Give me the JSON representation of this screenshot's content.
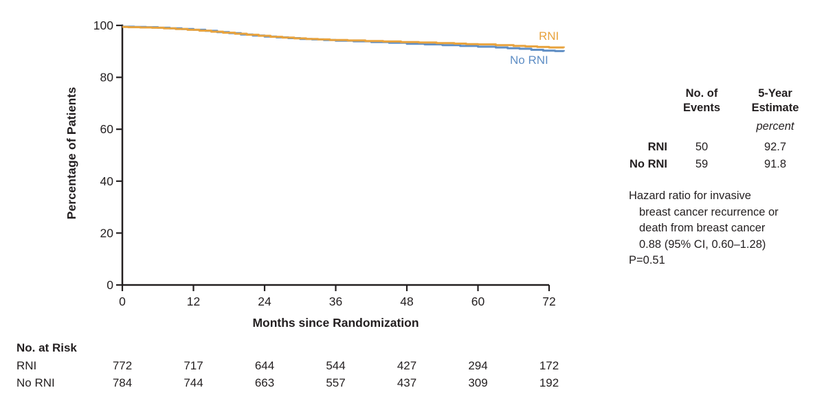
{
  "chart_data": {
    "type": "line",
    "subtype": "kaplan-meier-step",
    "x_axis_title": "Months since Randomization",
    "y_axis_title": "Percentage of Patients",
    "x_ticks": [
      0,
      12,
      24,
      36,
      48,
      60,
      72
    ],
    "y_ticks": [
      0,
      20,
      40,
      60,
      80,
      100
    ],
    "x_range": [
      0,
      74.5
    ],
    "y_range": [
      0,
      100
    ],
    "legend_position": "end-of-curve",
    "grid": false,
    "series": [
      {
        "name": "No RNI",
        "color": "#5f8ec5",
        "points": [
          [
            0,
            99.5
          ],
          [
            2,
            99.4
          ],
          [
            4,
            99.3
          ],
          [
            6,
            99.1
          ],
          [
            8,
            98.9
          ],
          [
            10,
            98.6
          ],
          [
            12,
            98.3
          ],
          [
            14,
            97.9
          ],
          [
            16,
            97.4
          ],
          [
            18,
            97.0
          ],
          [
            20,
            96.5
          ],
          [
            22,
            96.1
          ],
          [
            24,
            95.7
          ],
          [
            26,
            95.4
          ],
          [
            28,
            95.1
          ],
          [
            30,
            94.8
          ],
          [
            32,
            94.6
          ],
          [
            34,
            94.4
          ],
          [
            36,
            94.1
          ],
          [
            39,
            93.9
          ],
          [
            42,
            93.6
          ],
          [
            45,
            93.3
          ],
          [
            48,
            92.9
          ],
          [
            51,
            92.7
          ],
          [
            54,
            92.4
          ],
          [
            57,
            92.1
          ],
          [
            60,
            91.8
          ],
          [
            63,
            91.5
          ],
          [
            65,
            91.2
          ],
          [
            67,
            91.0
          ],
          [
            69,
            90.6
          ],
          [
            71,
            90.3
          ],
          [
            73,
            90.1
          ],
          [
            74.5,
            90.0
          ]
        ]
      },
      {
        "name": "RNI",
        "color": "#e8a33e",
        "points": [
          [
            0,
            99.4
          ],
          [
            1,
            99.3
          ],
          [
            3,
            99.2
          ],
          [
            5,
            99.1
          ],
          [
            7,
            98.9
          ],
          [
            9,
            98.6
          ],
          [
            11,
            98.3
          ],
          [
            13,
            98.0
          ],
          [
            15,
            97.6
          ],
          [
            17,
            97.2
          ],
          [
            19,
            96.8
          ],
          [
            21,
            96.4
          ],
          [
            23,
            96.0
          ],
          [
            25,
            95.6
          ],
          [
            27,
            95.3
          ],
          [
            29,
            95.0
          ],
          [
            31,
            94.8
          ],
          [
            33,
            94.6
          ],
          [
            35,
            94.4
          ],
          [
            38,
            94.2
          ],
          [
            41,
            94.0
          ],
          [
            44,
            93.8
          ],
          [
            47,
            93.6
          ],
          [
            50,
            93.4
          ],
          [
            53,
            93.2
          ],
          [
            56,
            93.0
          ],
          [
            58,
            92.8
          ],
          [
            60,
            92.7
          ],
          [
            63,
            92.4
          ],
          [
            66,
            92.1
          ],
          [
            68,
            91.9
          ],
          [
            70,
            91.7
          ],
          [
            72,
            91.5
          ],
          [
            74.5,
            91.4
          ]
        ]
      }
    ],
    "series_labels": {
      "rni": "RNI",
      "no_rni": "No RNI"
    },
    "risk_table": {
      "title": "No. at Risk",
      "timepoints": [
        0,
        12,
        24,
        36,
        48,
        60,
        72
      ],
      "rows": [
        {
          "label": "RNI",
          "values": [
            "772",
            "717",
            "644",
            "544",
            "427",
            "294",
            "172"
          ]
        },
        {
          "label": "No RNI",
          "values": [
            "784",
            "744",
            "663",
            "557",
            "437",
            "309",
            "192"
          ]
        }
      ]
    }
  },
  "stats": {
    "events_header_line1": "No. of",
    "events_header_line2": "Events",
    "estimate_header_line1": "5-Year",
    "estimate_header_line2": "Estimate",
    "unit_label": "percent",
    "rows": [
      {
        "label": "RNI",
        "events": "50",
        "estimate": "92.7"
      },
      {
        "label": "No RNI",
        "events": "59",
        "estimate": "91.8"
      }
    ],
    "hazard": {
      "lines": [
        "Hazard ratio for invasive",
        "breast cancer recurrence or",
        "death from breast cancer",
        "0.88 (95% CI, 0.60–1.28)",
        "P=0.51"
      ]
    }
  },
  "colors": {
    "rni": "#e8a33e",
    "no_rni": "#5f8ec5",
    "axis": "#231f20"
  }
}
